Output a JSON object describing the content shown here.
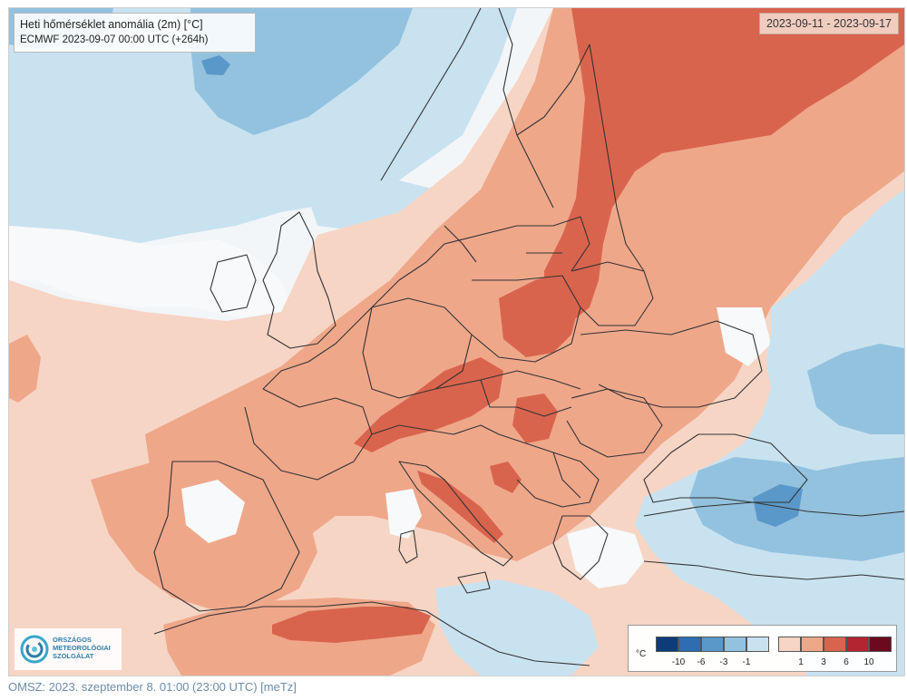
{
  "map": {
    "title_line1": "Heti hőmérséklet anomália (2m) [°C]",
    "title_line2": "ECMWF 2023-09-07 00:00 UTC (+264h)",
    "date_range": "2023-09-11 - 2023-09-17"
  },
  "legend": {
    "unit": "°C",
    "cold_colors": [
      "#0d3c78",
      "#2f6db3",
      "#5a98c9",
      "#93c2df",
      "#c9e2f0"
    ],
    "warm_colors": [
      "#f6d5c5",
      "#efa78a",
      "#d9644d",
      "#b42532",
      "#6b0a1e"
    ],
    "cold_ticks": [
      "-10",
      "-6",
      "-3",
      "-1"
    ],
    "warm_ticks": [
      "1",
      "3",
      "6",
      "10"
    ]
  },
  "logo": {
    "lines": [
      "ORSZÁGOS",
      "METEOROLÓGIAI",
      "SZOLGÁLAT"
    ]
  },
  "footer": {
    "text": "OMSZ: 2023. szeptember 8. 01:00 (23:00  UTC)  [meTz]"
  },
  "colors": {
    "sea_white": "#f3f6f8",
    "anomaly_light_blue": "#c9e2f0",
    "anomaly_mid_blue": "#93c2df",
    "anomaly_blue": "#5a98c9",
    "anomaly_pale_orange": "#f6d5c5",
    "anomaly_orange": "#efa78a",
    "anomaly_red": "#d9644d",
    "border_line": "#333333"
  }
}
